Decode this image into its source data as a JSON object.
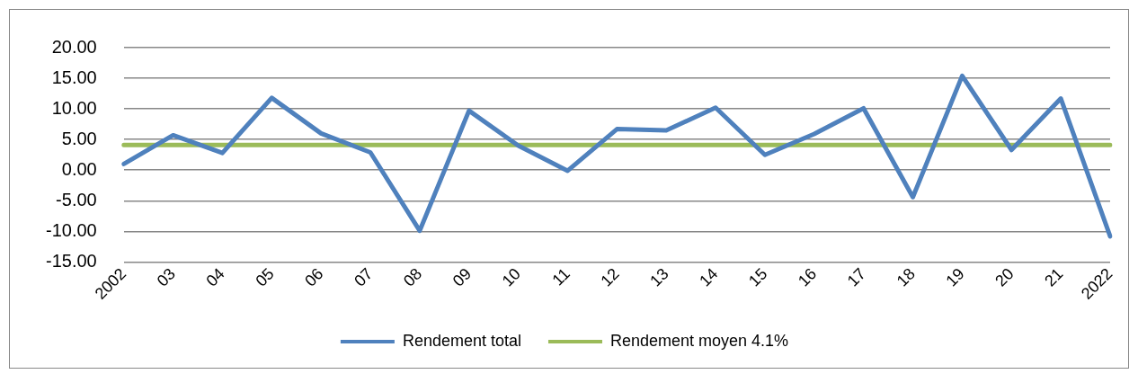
{
  "chart_data": {
    "type": "line",
    "categories": [
      "2002",
      "03",
      "04",
      "05",
      "06",
      "07",
      "08",
      "09",
      "10",
      "11",
      "12",
      "13",
      "14",
      "15",
      "16",
      "17",
      "18",
      "19",
      "20",
      "21",
      "2022"
    ],
    "series": [
      {
        "name": "Rendement total",
        "color": "#4f81bd",
        "values": [
          1.0,
          5.7,
          2.8,
          11.8,
          6.0,
          2.9,
          -9.9,
          9.7,
          4.0,
          -0.1,
          6.7,
          6.5,
          10.2,
          2.5,
          5.9,
          10.1,
          -4.4,
          15.4,
          3.3,
          11.7,
          -10.8
        ]
      },
      {
        "name": "Rendement moyen 4.1%",
        "color": "#9bbb59",
        "values": [
          4.1,
          4.1,
          4.1,
          4.1,
          4.1,
          4.1,
          4.1,
          4.1,
          4.1,
          4.1,
          4.1,
          4.1,
          4.1,
          4.1,
          4.1,
          4.1,
          4.1,
          4.1,
          4.1,
          4.1,
          4.1
        ]
      }
    ],
    "ylim": [
      -15,
      20
    ],
    "yticks": [
      {
        "value": -15,
        "label": "-15.00"
      },
      {
        "value": -10,
        "label": "-10.00"
      },
      {
        "value": -5,
        "label": "-5.00"
      },
      {
        "value": 0,
        "label": "0.00"
      },
      {
        "value": 5,
        "label": "5.00"
      },
      {
        "value": 10,
        "label": "10.00"
      },
      {
        "value": 15,
        "label": "15.00"
      },
      {
        "value": 20,
        "label": "20.00"
      }
    ],
    "grid": "y",
    "legend": "bottom",
    "marker": "none",
    "line_style": "solid"
  }
}
